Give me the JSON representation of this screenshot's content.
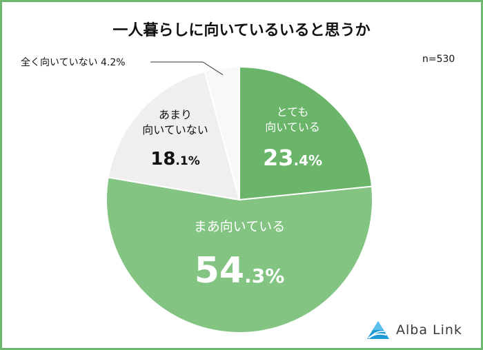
{
  "chart_data": {
    "type": "pie",
    "title": "一人暮らしに向いているいると思うか",
    "n_label": "n=530",
    "slices": [
      {
        "label_lines": [
          "とても",
          "向いている"
        ],
        "value_int": "23",
        "value_dec": ".4%",
        "value": 23.4,
        "color": "#6bb56a",
        "text_color": "#ffffff"
      },
      {
        "label_lines": [
          "まあ向いている"
        ],
        "value_int": "54",
        "value_dec": ".3%",
        "value": 54.3,
        "color": "#84c482",
        "text_color": "#ffffff"
      },
      {
        "label_lines": [
          "あまり",
          "向いていない"
        ],
        "value_int": "18",
        "value_dec": ".1%",
        "value": 18.1,
        "color": "#efefef",
        "text_color": "#111111"
      },
      {
        "label_lines": [
          "全く向いていない 4.2%"
        ],
        "value": 4.2,
        "color": "#f8f8f8",
        "text_color": "#111111"
      }
    ]
  },
  "logo": {
    "text": "Alba Link"
  }
}
